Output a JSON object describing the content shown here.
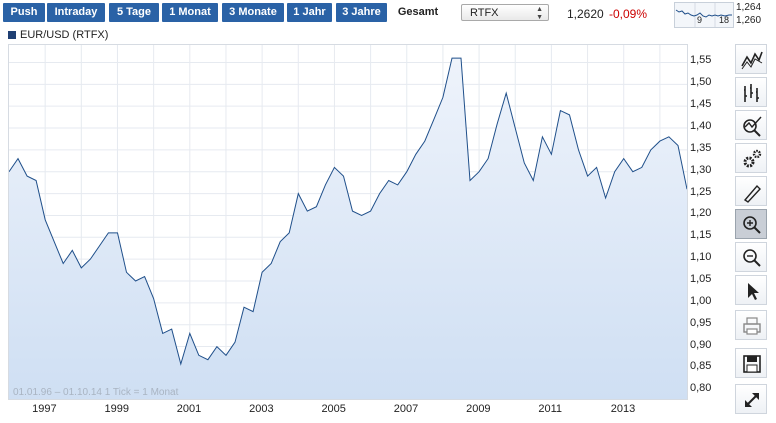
{
  "toolbar": {
    "range_buttons": [
      "Push",
      "Intraday",
      "5 Tage",
      "1 Monat",
      "3 Monate",
      "1 Jahr",
      "3 Jahre"
    ],
    "active_range": "Gesamt",
    "exchange_select": "RTFX",
    "price": "1,2620",
    "change": "-0,09%",
    "mini_chart": {
      "high": "1,264",
      "low": "1,260",
      "tick_a": "9",
      "tick_b": "18"
    }
  },
  "legend": {
    "label": "EUR/USD (RTFX)",
    "color": "#1f3f73"
  },
  "footnote": "01.01.96 – 01.10.14   1 Tick = 1 Monat",
  "sidebar": {
    "icons": [
      "line-chart-icon",
      "bar-chart-icon",
      "indicator-icon",
      "settings-icon",
      "draw-icon",
      "zoom-in-icon",
      "zoom-out-icon",
      "pointer-icon",
      "print-icon",
      "save-icon",
      "fullscreen-icon"
    ]
  },
  "colors": {
    "button": "#2a62a6",
    "line": "#1f4f8a",
    "fill": "#dde8f7",
    "negative": "#cc0000"
  },
  "chart_data": {
    "type": "area",
    "title": "EUR/USD (RTFX)",
    "xlabel": "",
    "ylabel": "",
    "x_ticks": [
      "1997",
      "1999",
      "2001",
      "2003",
      "2005",
      "2007",
      "2009",
      "2011",
      "2013"
    ],
    "y_ticks": [
      "1,55",
      "1,50",
      "1,45",
      "1,40",
      "1,35",
      "1,30",
      "1,25",
      "1,20",
      "1,15",
      "1,10",
      "1,05",
      "1,00",
      "0,95",
      "0,90",
      "0,85",
      "0,80"
    ],
    "xlim": [
      "1996-01",
      "2014-10"
    ],
    "ylim": [
      0.78,
      1.59
    ],
    "grid": true,
    "x": [
      "1996-01",
      "1996-04",
      "1996-07",
      "1996-10",
      "1997-01",
      "1997-04",
      "1997-07",
      "1997-10",
      "1998-01",
      "1998-04",
      "1998-07",
      "1998-10",
      "1999-01",
      "1999-04",
      "1999-07",
      "1999-10",
      "2000-01",
      "2000-04",
      "2000-07",
      "2000-10",
      "2001-01",
      "2001-04",
      "2001-07",
      "2001-10",
      "2002-01",
      "2002-04",
      "2002-07",
      "2002-10",
      "2003-01",
      "2003-04",
      "2003-07",
      "2003-10",
      "2004-01",
      "2004-04",
      "2004-07",
      "2004-10",
      "2005-01",
      "2005-04",
      "2005-07",
      "2005-10",
      "2006-01",
      "2006-04",
      "2006-07",
      "2006-10",
      "2007-01",
      "2007-04",
      "2007-07",
      "2007-10",
      "2008-01",
      "2008-04",
      "2008-07",
      "2008-10",
      "2009-01",
      "2009-04",
      "2009-07",
      "2009-10",
      "2010-01",
      "2010-04",
      "2010-07",
      "2010-10",
      "2011-01",
      "2011-04",
      "2011-07",
      "2011-10",
      "2012-01",
      "2012-04",
      "2012-07",
      "2012-10",
      "2013-01",
      "2013-04",
      "2013-07",
      "2013-10",
      "2014-01",
      "2014-04",
      "2014-07",
      "2014-10"
    ],
    "values": [
      1.3,
      1.33,
      1.29,
      1.28,
      1.19,
      1.14,
      1.09,
      1.12,
      1.08,
      1.1,
      1.13,
      1.16,
      1.16,
      1.07,
      1.05,
      1.06,
      1.01,
      0.93,
      0.94,
      0.86,
      0.93,
      0.88,
      0.87,
      0.9,
      0.88,
      0.91,
      0.99,
      0.98,
      1.07,
      1.09,
      1.14,
      1.16,
      1.25,
      1.21,
      1.22,
      1.27,
      1.31,
      1.29,
      1.21,
      1.2,
      1.21,
      1.25,
      1.28,
      1.27,
      1.3,
      1.34,
      1.37,
      1.42,
      1.47,
      1.56,
      1.56,
      1.28,
      1.3,
      1.33,
      1.41,
      1.48,
      1.4,
      1.32,
      1.28,
      1.38,
      1.34,
      1.44,
      1.43,
      1.35,
      1.29,
      1.31,
      1.24,
      1.3,
      1.33,
      1.3,
      1.31,
      1.35,
      1.37,
      1.38,
      1.36,
      1.26
    ]
  }
}
